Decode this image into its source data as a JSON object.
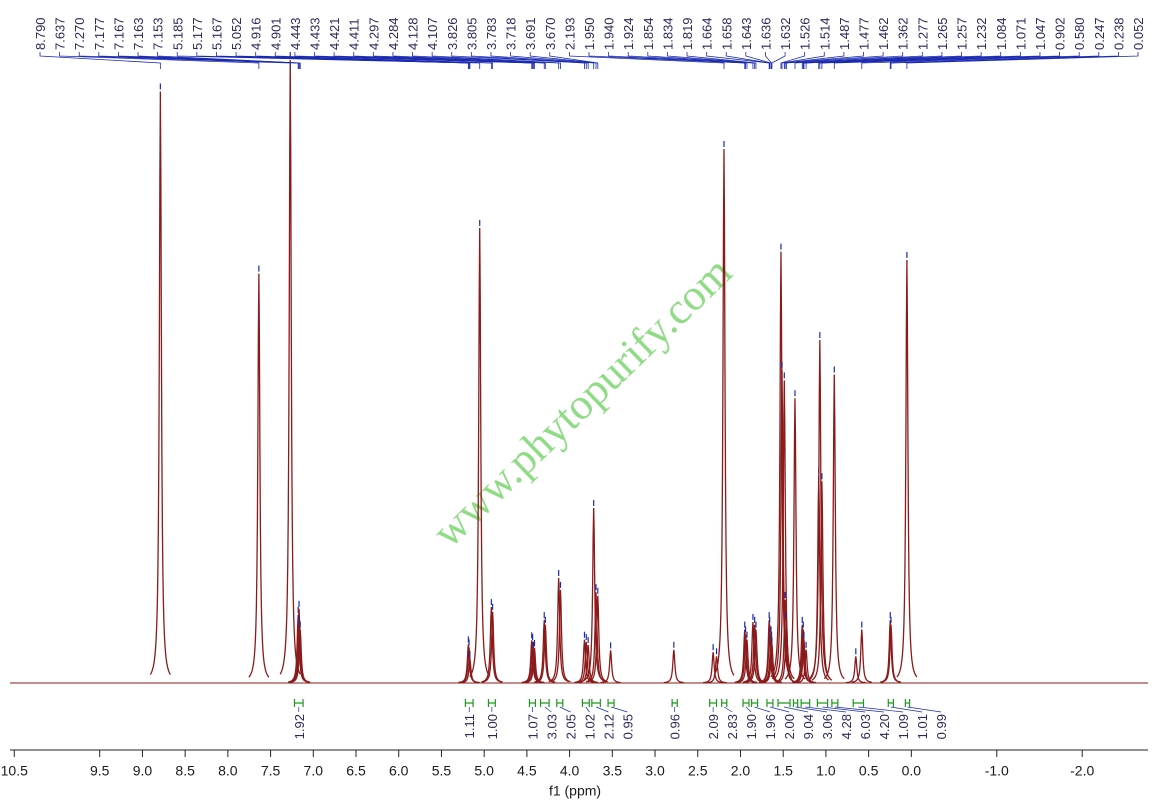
{
  "chart_data": {
    "type": "nmr",
    "x_label": "f1 (ppm)",
    "watermark": "www.phytopurify.com",
    "xlim": [
      10.55,
      -2.77
    ],
    "ylim": [
      0,
      105
    ],
    "xticks": [
      10.5,
      9.5,
      {
        "value": 9,
        "label": "9.0"
      },
      8.5,
      {
        "value": 8,
        "label": "8.0"
      },
      7.5,
      {
        "value": 7,
        "label": "7.0"
      },
      6.5,
      {
        "value": 6,
        "label": "6.0"
      },
      5.5,
      {
        "value": 5,
        "label": "5.0"
      },
      4.5,
      {
        "value": 4,
        "label": "4.0"
      },
      3.5,
      {
        "value": 3,
        "label": "3.0"
      },
      2.5,
      {
        "value": 2,
        "label": "2.0"
      },
      1.5,
      {
        "value": 1,
        "label": "1.0"
      },
      0.5,
      {
        "value": 0,
        "label": "0.0"
      },
      {
        "value": -1,
        "label": "-1.0"
      },
      {
        "value": -2,
        "label": "-2.0"
      }
    ],
    "peaks": {
      "color": "#8b1a1a",
      "x": [
        8.79,
        7.637,
        7.27,
        7.177,
        7.167,
        7.163,
        7.153,
        5.185,
        5.177,
        5.167,
        5.052,
        4.916,
        4.901,
        4.443,
        4.433,
        4.421,
        4.411,
        4.297,
        4.284,
        4.128,
        4.107,
        3.826,
        3.805,
        3.783,
        3.718,
        3.691,
        3.67,
        3.52,
        2.78,
        2.32,
        2.28,
        2.193,
        1.95,
        1.94,
        1.924,
        1.854,
        1.834,
        1.819,
        1.664,
        1.658,
        1.643,
        1.636,
        1.632,
        1.526,
        1.514,
        1.487,
        1.477,
        1.462,
        1.362,
        1.277,
        1.265,
        1.257,
        1.232,
        1.084,
        1.071,
        1.047,
        0.902,
        0.65,
        0.58,
        0.247,
        0.238,
        0.052
      ],
      "values": [
        99.7,
        69,
        105,
        11.5,
        12.5,
        10,
        9,
        6.5,
        6,
        4,
        76.7,
        12.8,
        12,
        7.2,
        6.9,
        5.6,
        5.9,
        10.6,
        9.8,
        17.7,
        15.7,
        7.3,
        6.9,
        6.4,
        29.5,
        15.3,
        14.7,
        5.5,
        5.6,
        5.2,
        4.5,
        90,
        9,
        8.2,
        7.3,
        10.3,
        9.8,
        9,
        10.6,
        9.8,
        8.2,
        7.3,
        6.4,
        72.7,
        52.8,
        51,
        14,
        10.6,
        48,
        9.8,
        9,
        7.3,
        5.6,
        35,
        57.8,
        34,
        52,
        4.5,
        9,
        10.6,
        9.8,
        71.3
      ]
    },
    "peak_labels": [
      {
        "value": 8.79,
        "label": "8.790"
      },
      {
        "value": 7.637,
        "label": "7.637"
      },
      {
        "value": 7.27,
        "label": "7.270"
      },
      {
        "value": 7.177,
        "label": "7.177"
      },
      {
        "value": 7.167,
        "label": "7.167"
      },
      {
        "value": 7.163,
        "label": "7.163"
      },
      {
        "value": 7.153,
        "label": "7.153"
      },
      {
        "value": 5.185,
        "label": "5.185"
      },
      {
        "value": 5.177,
        "label": "5.177"
      },
      {
        "value": 5.167,
        "label": "5.167"
      },
      {
        "value": 5.052,
        "label": "5.052"
      },
      {
        "value": 4.916,
        "label": "4.916"
      },
      {
        "value": 4.901,
        "label": "4.901"
      },
      {
        "value": 4.443,
        "label": "4.443"
      },
      {
        "value": 4.433,
        "label": "4.433"
      },
      {
        "value": 4.421,
        "label": "4.421"
      },
      {
        "value": 4.411,
        "label": "4.411"
      },
      {
        "value": 4.297,
        "label": "4.297"
      },
      {
        "value": 4.284,
        "label": "4.284"
      },
      {
        "value": 4.128,
        "label": "4.128"
      },
      {
        "value": 4.107,
        "label": "4.107"
      },
      {
        "value": 3.826,
        "label": "3.826"
      },
      {
        "value": 3.805,
        "label": "3.805"
      },
      {
        "value": 3.783,
        "label": "3.783"
      },
      {
        "value": 3.718,
        "label": "3.718"
      },
      {
        "value": 3.691,
        "label": "3.691"
      },
      {
        "value": 3.67,
        "label": "3.670"
      },
      {
        "value": 2.193,
        "label": "2.193"
      },
      {
        "value": 1.95,
        "label": "1.950"
      },
      {
        "value": 1.94,
        "label": "1.940"
      },
      {
        "value": 1.924,
        "label": "1.924"
      },
      {
        "value": 1.854,
        "label": "1.854"
      },
      {
        "value": 1.834,
        "label": "1.834"
      },
      {
        "value": 1.819,
        "label": "1.819"
      },
      {
        "value": 1.664,
        "label": "1.664"
      },
      {
        "value": 1.658,
        "label": "1.658"
      },
      {
        "value": 1.643,
        "label": "1.643"
      },
      {
        "value": 1.636,
        "label": "1.636"
      },
      {
        "value": 1.632,
        "label": "1.632"
      },
      {
        "value": 1.526,
        "label": "1.526"
      },
      {
        "value": 1.514,
        "label": "1.514"
      },
      {
        "value": 1.487,
        "label": "1.487"
      },
      {
        "value": 1.477,
        "label": "1.477"
      },
      {
        "value": 1.462,
        "label": "1.462"
      },
      {
        "value": 1.362,
        "label": "1.362"
      },
      {
        "value": 1.277,
        "label": "1.277"
      },
      {
        "value": 1.265,
        "label": "1.265"
      },
      {
        "value": 1.257,
        "label": "1.257"
      },
      {
        "value": 1.232,
        "label": "1.232"
      },
      {
        "value": 1.084,
        "label": "1.084"
      },
      {
        "value": 1.071,
        "label": "1.071"
      },
      {
        "value": 1.047,
        "label": "1.047"
      },
      {
        "value": 0.902,
        "label": "0.902"
      },
      {
        "value": 0.58,
        "label": "0.580"
      },
      {
        "value": 0.247,
        "label": "0.247"
      },
      {
        "value": 0.238,
        "label": "0.238"
      },
      {
        "value": 0.052,
        "label": "0.052"
      }
    ],
    "integrals": [
      {
        "from": 7.22,
        "to": 7.12,
        "value": 1.92,
        "label": "1.92"
      },
      {
        "from": 5.22,
        "to": 5.13,
        "value": 1.11,
        "label": "1.11"
      },
      {
        "from": 4.95,
        "to": 4.87,
        "value": 1,
        "label": "1.00"
      },
      {
        "from": 4.47,
        "to": 4.4,
        "value": 1.07,
        "label": "1.07"
      },
      {
        "from": 4.34,
        "to": 4.24,
        "value": 3.03,
        "label": "3.03"
      },
      {
        "from": 4.15,
        "to": 4.08,
        "value": 2.05,
        "label": "2.05"
      },
      {
        "from": 3.85,
        "to": 3.77,
        "value": 1.02,
        "label": "1.02"
      },
      {
        "from": 3.74,
        "to": 3.64,
        "value": 2.12,
        "label": "2.12"
      },
      {
        "from": 3.55,
        "to": 3.48,
        "value": 0.95,
        "label": "0.95"
      },
      {
        "from": 2.8,
        "to": 2.74,
        "value": 0.96,
        "label": "0.96"
      },
      {
        "from": 2.36,
        "to": 2.28,
        "value": 2.09,
        "label": "2.09"
      },
      {
        "from": 2.22,
        "to": 2.16,
        "value": 2.83,
        "label": "2.83"
      },
      {
        "from": 1.97,
        "to": 1.9,
        "value": 1.9,
        "label": "1.90"
      },
      {
        "from": 1.87,
        "to": 1.8,
        "value": 1.96,
        "label": "1.96"
      },
      {
        "from": 1.69,
        "to": 1.62,
        "value": 2,
        "label": "2.00"
      },
      {
        "from": 1.56,
        "to": 1.42,
        "value": 9.04,
        "label": "9.04"
      },
      {
        "from": 1.38,
        "to": 1.33,
        "value": 3.06,
        "label": "3.06"
      },
      {
        "from": 1.29,
        "to": 1.19,
        "value": 4.28,
        "label": "4.28"
      },
      {
        "from": 1.1,
        "to": 0.98,
        "value": 6.03,
        "label": "6.03"
      },
      {
        "from": 0.93,
        "to": 0.86,
        "value": 4.2,
        "label": "4.20"
      },
      {
        "from": 0.68,
        "to": 0.56,
        "value": 1.09,
        "label": "1.09"
      },
      {
        "from": 0.27,
        "to": 0.21,
        "value": 1.01,
        "label": "1.01"
      },
      {
        "from": 0.07,
        "to": 0.02,
        "value": 0.99,
        "label": "0.99"
      }
    ]
  }
}
